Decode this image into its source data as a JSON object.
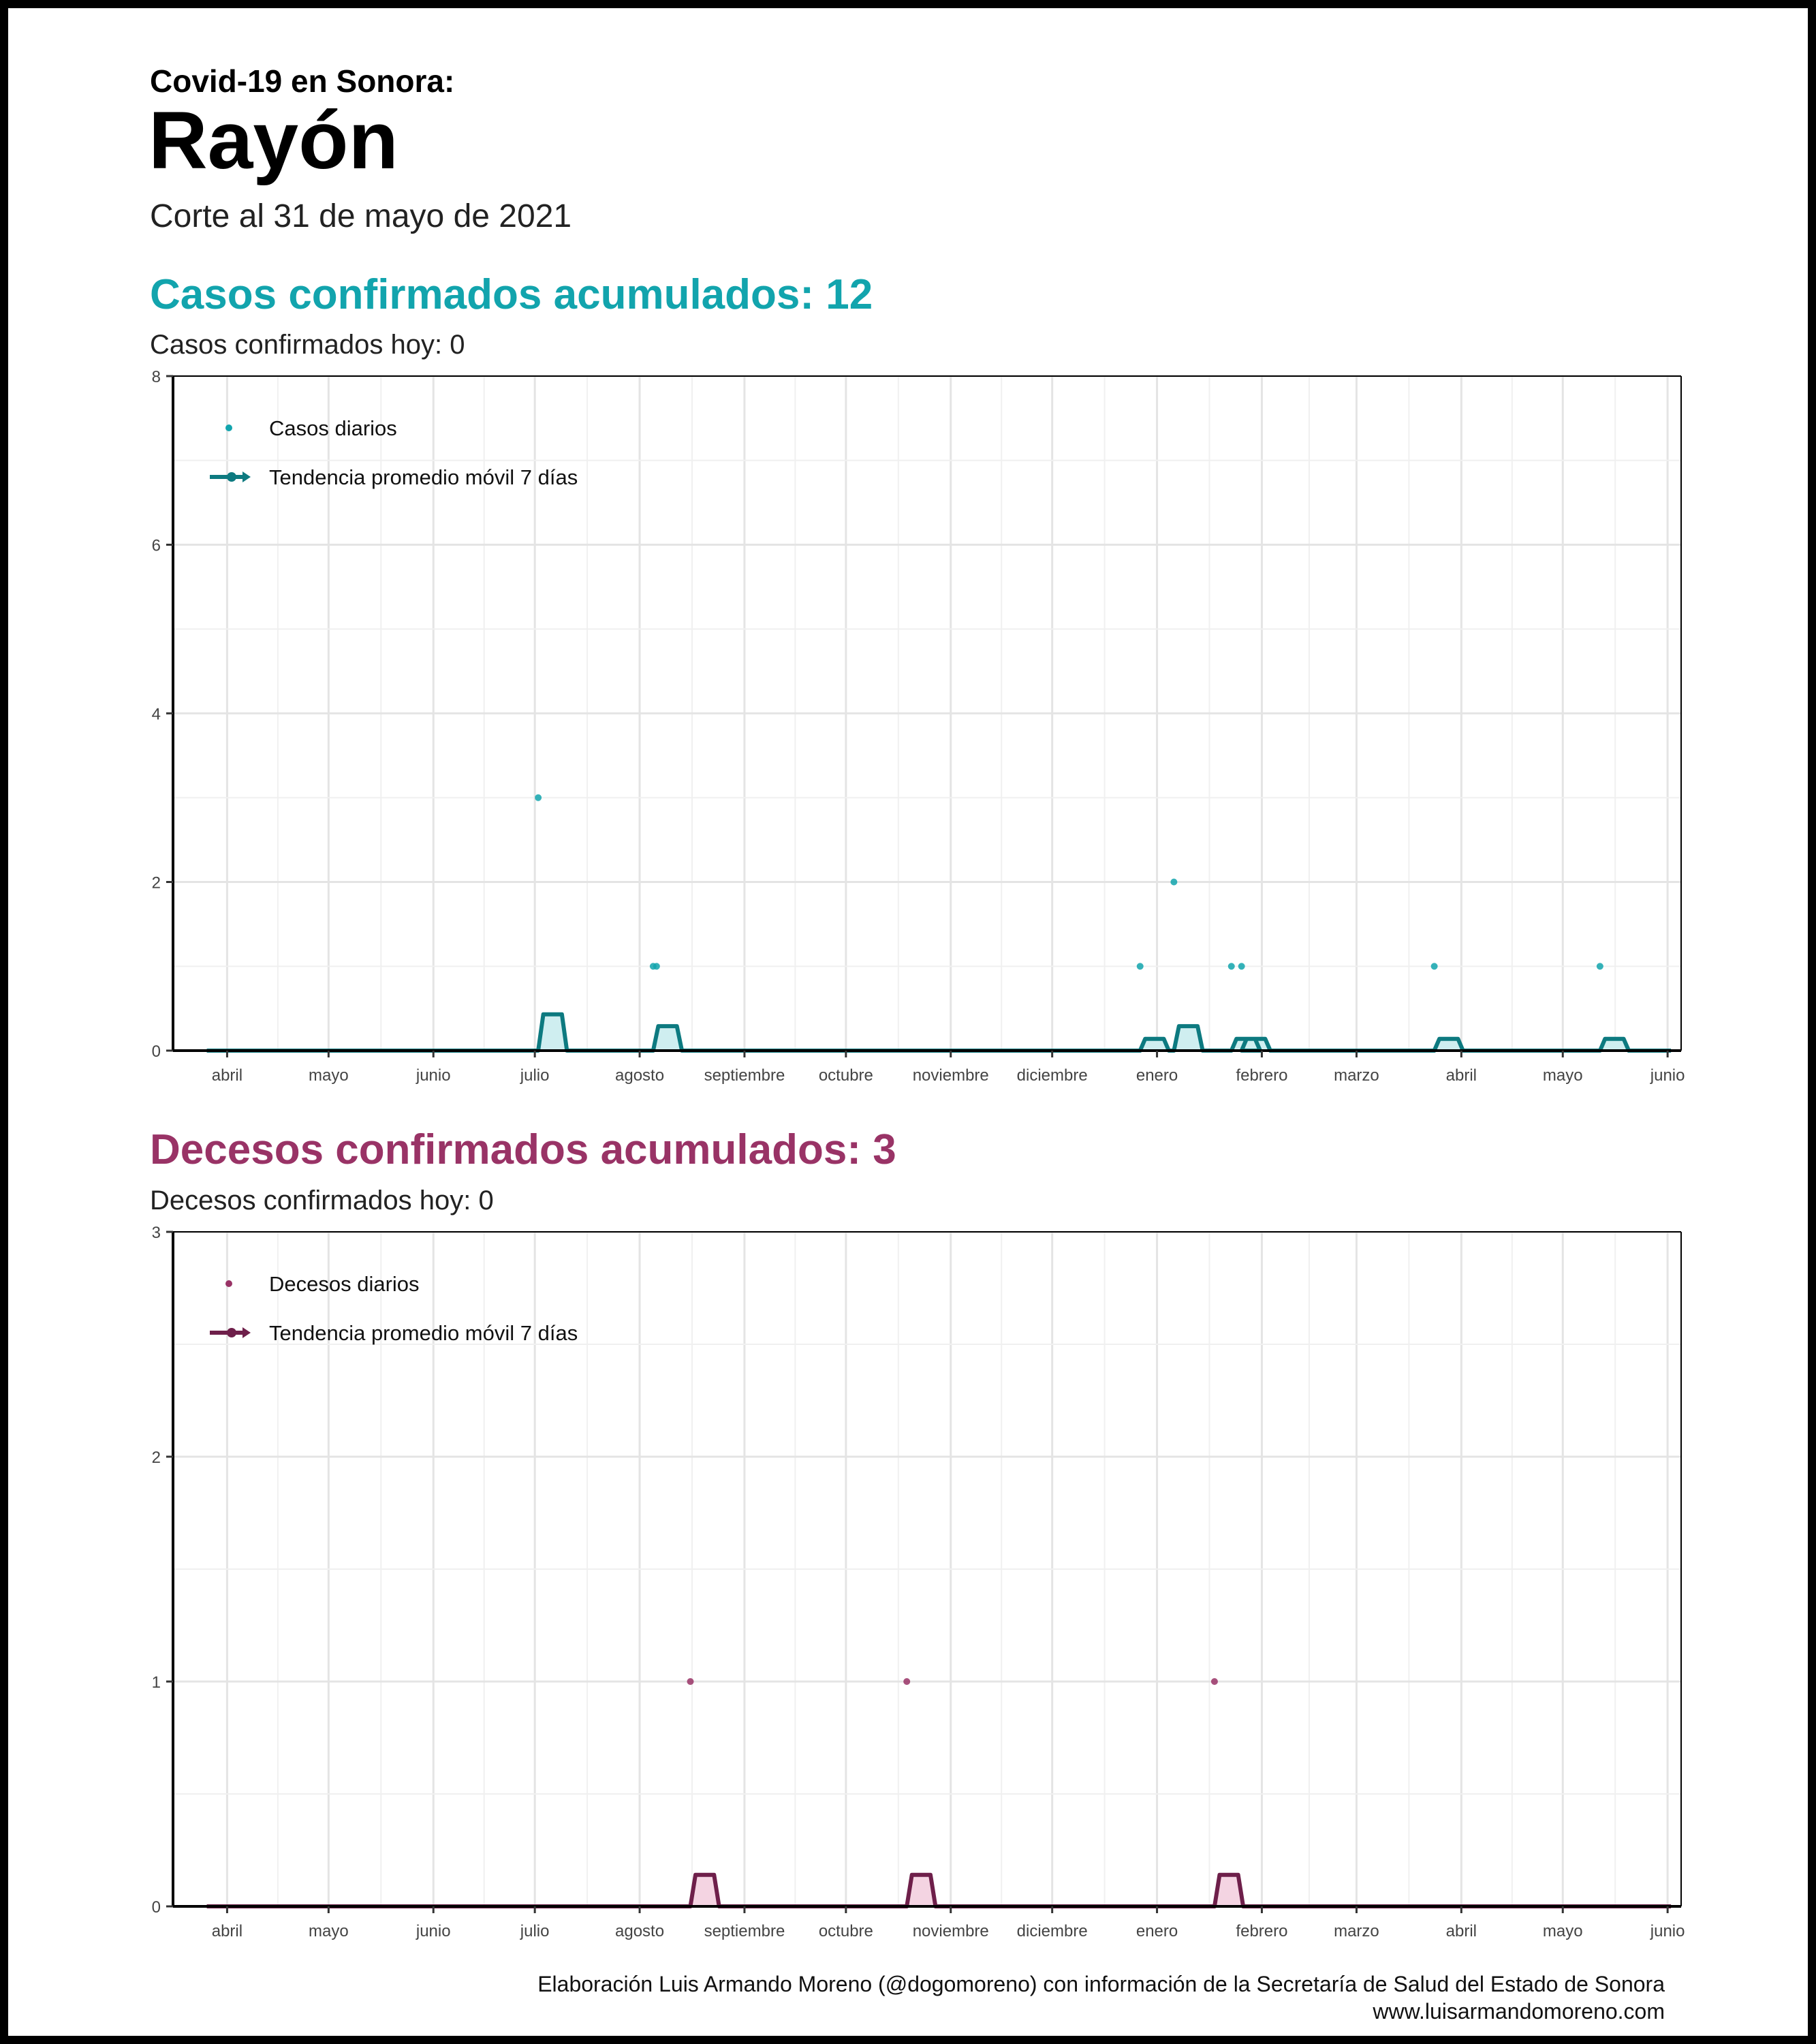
{
  "header": {
    "supertitle": "Covid-19 en Sonora:",
    "title": "Rayón",
    "cutoff": "Corte al 31 de mayo de 2021"
  },
  "cases": {
    "title": "Casos confirmados acumulados: 12",
    "subtitle": "Casos confirmados hoy: 0",
    "color": "#12a4ad",
    "dark_color": "#0d7a80",
    "fill_color": "#cfeef0",
    "legend_points": "Casos diarios",
    "legend_line": "Tendencia promedio móvil 7 días"
  },
  "deaths": {
    "title": "Decesos confirmados acumulados: 3",
    "subtitle": "Decesos confirmados hoy: 0",
    "color": "#993366",
    "dark_color": "#6e1f4a",
    "fill_color": "#f4d4e2",
    "legend_points": "Decesos diarios",
    "legend_line": "Tendencia promedio móvil 7 días"
  },
  "caption": {
    "line1": "Elaboración Luis Armando Moreno (@dogomoreno) con información de la Secretaría de Salud del Estado de Sonora",
    "line2": "www.luisarmandomoreno.com"
  },
  "chart_data": [
    {
      "type": "scatter",
      "x_axis": "date",
      "x_ticks": [
        {
          "date": "2020-04-01",
          "label": "abril"
        },
        {
          "date": "2020-05-01",
          "label": "mayo"
        },
        {
          "date": "2020-06-01",
          "label": "junio"
        },
        {
          "date": "2020-07-01",
          "label": "julio"
        },
        {
          "date": "2020-08-01",
          "label": "agosto"
        },
        {
          "date": "2020-09-01",
          "label": "septiembre"
        },
        {
          "date": "2020-10-01",
          "label": "octubre"
        },
        {
          "date": "2020-11-01",
          "label": "noviembre"
        },
        {
          "date": "2020-12-01",
          "label": "diciembre"
        },
        {
          "date": "2021-01-01",
          "label": "enero"
        },
        {
          "date": "2021-02-01",
          "label": "febrero"
        },
        {
          "date": "2021-03-01",
          "label": "marzo"
        },
        {
          "date": "2021-04-01",
          "label": "abril"
        },
        {
          "date": "2021-05-01",
          "label": "mayo"
        },
        {
          "date": "2021-06-01",
          "label": "junio"
        }
      ],
      "xlim": [
        "2020-03-16",
        "2021-06-05"
      ],
      "ylim": [
        0,
        8
      ],
      "y_ticks": [
        0,
        2,
        4,
        6,
        8
      ],
      "grid": true,
      "legend_position": "top-left",
      "series": [
        {
          "name": "Casos diarios",
          "points": [
            {
              "date": "2020-07-02",
              "value": 3
            },
            {
              "date": "2020-08-05",
              "value": 1
            },
            {
              "date": "2020-08-06",
              "value": 1
            },
            {
              "date": "2020-12-27",
              "value": 1
            },
            {
              "date": "2021-01-06",
              "value": 2
            },
            {
              "date": "2021-01-23",
              "value": 1
            },
            {
              "date": "2021-01-26",
              "value": 1
            },
            {
              "date": "2021-03-24",
              "value": 1
            },
            {
              "date": "2021-05-12",
              "value": 1
            }
          ]
        },
        {
          "name": "Tendencia promedio móvil 7 días",
          "windows": [
            {
              "start": "2020-07-02",
              "value": 0.43
            },
            {
              "start": "2020-08-05",
              "value": 0.29
            },
            {
              "start": "2020-12-27",
              "value": 0.14
            },
            {
              "start": "2021-01-06",
              "value": 0.29
            },
            {
              "start": "2021-01-23",
              "value": 0.14
            },
            {
              "start": "2021-01-26",
              "value": 0.14
            },
            {
              "start": "2021-03-24",
              "value": 0.14
            },
            {
              "start": "2021-05-12",
              "value": 0.14
            }
          ]
        }
      ]
    },
    {
      "type": "scatter",
      "x_axis": "date",
      "x_ticks": [
        {
          "date": "2020-04-01",
          "label": "abril"
        },
        {
          "date": "2020-05-01",
          "label": "mayo"
        },
        {
          "date": "2020-06-01",
          "label": "junio"
        },
        {
          "date": "2020-07-01",
          "label": "julio"
        },
        {
          "date": "2020-08-01",
          "label": "agosto"
        },
        {
          "date": "2020-09-01",
          "label": "septiembre"
        },
        {
          "date": "2020-10-01",
          "label": "octubre"
        },
        {
          "date": "2020-11-01",
          "label": "noviembre"
        },
        {
          "date": "2020-12-01",
          "label": "diciembre"
        },
        {
          "date": "2021-01-01",
          "label": "enero"
        },
        {
          "date": "2021-02-01",
          "label": "febrero"
        },
        {
          "date": "2021-03-01",
          "label": "marzo"
        },
        {
          "date": "2021-04-01",
          "label": "abril"
        },
        {
          "date": "2021-05-01",
          "label": "mayo"
        },
        {
          "date": "2021-06-01",
          "label": "junio"
        }
      ],
      "xlim": [
        "2020-03-16",
        "2021-06-05"
      ],
      "ylim": [
        0,
        3
      ],
      "y_ticks": [
        0,
        1,
        2,
        3
      ],
      "grid": true,
      "legend_position": "top-left",
      "series": [
        {
          "name": "Decesos diarios",
          "points": [
            {
              "date": "2020-08-16",
              "value": 1
            },
            {
              "date": "2020-10-19",
              "value": 1
            },
            {
              "date": "2021-01-18",
              "value": 1
            }
          ]
        },
        {
          "name": "Tendencia promedio móvil 7 días",
          "windows": [
            {
              "start": "2020-08-16",
              "value": 0.14
            },
            {
              "start": "2020-10-19",
              "value": 0.14
            },
            {
              "start": "2021-01-18",
              "value": 0.14
            }
          ]
        }
      ]
    }
  ]
}
